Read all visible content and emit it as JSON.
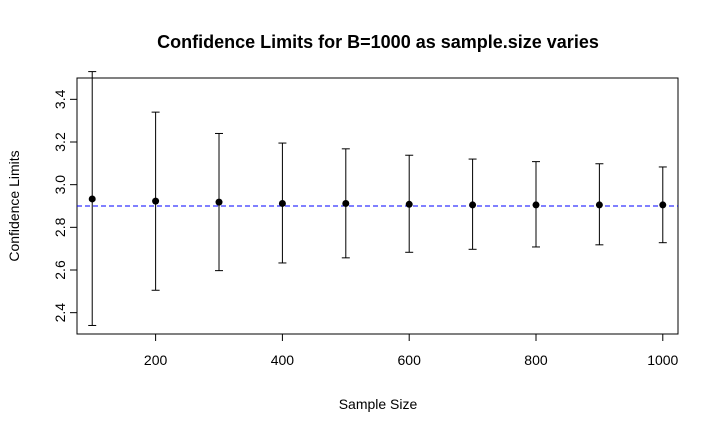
{
  "chart_data": {
    "type": "scatter",
    "title": "Confidence Limits for B=1000 as sample.size varies",
    "xlabel": "Sample Size",
    "ylabel": "Confidence Limits",
    "xlim": [
      76,
      1024
    ],
    "ylim": [
      2.3,
      3.5
    ],
    "x_ticks": [
      200,
      400,
      600,
      800,
      1000
    ],
    "y_ticks": [
      2.4,
      2.6,
      2.8,
      3.0,
      3.2,
      3.4
    ],
    "grid": false,
    "reference_line": {
      "y": 2.9,
      "style": "dashed",
      "color": "#0000ff"
    },
    "points": [
      {
        "x": 100,
        "y": 2.933,
        "lower": 2.34,
        "upper": 3.53
      },
      {
        "x": 200,
        "y": 2.923,
        "lower": 2.505,
        "upper": 3.34
      },
      {
        "x": 300,
        "y": 2.918,
        "lower": 2.597,
        "upper": 3.24
      },
      {
        "x": 400,
        "y": 2.912,
        "lower": 2.633,
        "upper": 3.195
      },
      {
        "x": 500,
        "y": 2.912,
        "lower": 2.657,
        "upper": 3.168
      },
      {
        "x": 600,
        "y": 2.908,
        "lower": 2.683,
        "upper": 3.138
      },
      {
        "x": 700,
        "y": 2.905,
        "lower": 2.697,
        "upper": 3.12
      },
      {
        "x": 800,
        "y": 2.905,
        "lower": 2.708,
        "upper": 3.108
      },
      {
        "x": 900,
        "y": 2.905,
        "lower": 2.718,
        "upper": 3.098
      },
      {
        "x": 1000,
        "y": 2.905,
        "lower": 2.728,
        "upper": 3.083
      }
    ]
  }
}
